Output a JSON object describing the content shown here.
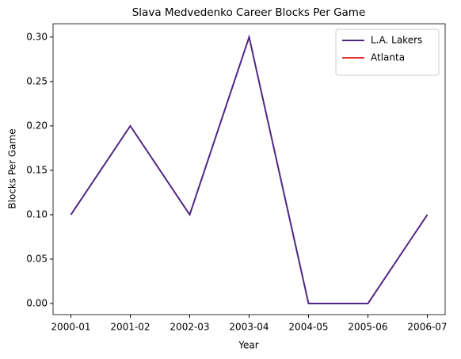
{
  "chart_data": {
    "type": "line",
    "title": "Slava Medvedenko Career Blocks Per Game",
    "x_label": "Year",
    "y_label": "Blocks Per Game",
    "categories": [
      "2000-01",
      "2001-02",
      "2002-03",
      "2003-04",
      "2004-05",
      "2005-06",
      "2006-07"
    ],
    "series": [
      {
        "name": "L.A. Lakers",
        "color": "#4f2683",
        "values": [
          0.1,
          0.2,
          0.1,
          0.3,
          0.0,
          0.0,
          0.1
        ]
      },
      {
        "name": "Atlanta",
        "color": "#e03a3e",
        "values": [
          null,
          null,
          null,
          null,
          null,
          null,
          null
        ]
      }
    ],
    "xlim": [
      -0.3,
      6.3
    ],
    "ylim": [
      -0.0125,
      0.315
    ],
    "yticks": [
      {
        "value": 0,
        "label": "0.00"
      },
      {
        "value": 0.05,
        "label": "0.05"
      },
      {
        "value": 0.1,
        "label": "0.10"
      },
      {
        "value": 0.15,
        "label": "0.15"
      },
      {
        "value": 0.2,
        "label": "0.20"
      },
      {
        "value": 0.25,
        "label": "0.25"
      },
      {
        "value": 0.3,
        "label": "0.30"
      }
    ],
    "legend": "upper right",
    "grid": false
  }
}
